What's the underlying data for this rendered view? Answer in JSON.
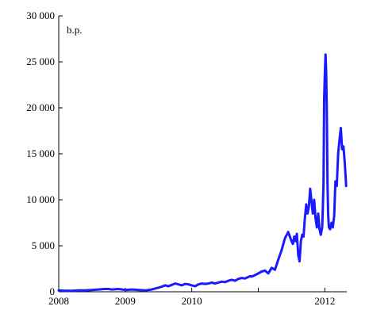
{
  "chart_data": {
    "type": "line",
    "title": "",
    "xlabel": "",
    "ylabel": "",
    "unit_label": "b.p.",
    "xlim": [
      2008.0,
      2012.33
    ],
    "ylim": [
      0,
      30000
    ],
    "x_ticks": [
      2008,
      2009,
      2010,
      2011,
      2012
    ],
    "x_tick_labels": [
      "2008",
      "2009",
      "2010",
      "",
      "2012"
    ],
    "y_ticks": [
      0,
      5000,
      10000,
      15000,
      20000,
      25000,
      30000
    ],
    "y_tick_labels": [
      "0",
      "5 000",
      "10 000",
      "15 000",
      "20 000",
      "25 000",
      "30 000"
    ],
    "grid": false,
    "legend": "none",
    "series": [
      {
        "color": "#1a1aff",
        "x": [
          2008.0,
          2008.1,
          2008.2,
          2008.3,
          2008.4,
          2008.5,
          2008.6,
          2008.7,
          2008.75,
          2008.8,
          2008.9,
          2009.0,
          2009.1,
          2009.2,
          2009.3,
          2009.35,
          2009.4,
          2009.45,
          2009.5,
          2009.55,
          2009.6,
          2009.65,
          2009.7,
          2009.75,
          2009.8,
          2009.85,
          2009.9,
          2009.95,
          2010.0,
          2010.05,
          2010.1,
          2010.15,
          2010.2,
          2010.25,
          2010.3,
          2010.35,
          2010.4,
          2010.45,
          2010.5,
          2010.55,
          2010.6,
          2010.65,
          2010.7,
          2010.75,
          2010.8,
          2010.85,
          2010.88,
          2010.9,
          2010.95,
          2011.0,
          2011.05,
          2011.1,
          2011.15,
          2011.2,
          2011.25,
          2011.3,
          2011.35,
          2011.4,
          2011.45,
          2011.5,
          2011.52,
          2011.54,
          2011.56,
          2011.58,
          2011.6,
          2011.62,
          2011.64,
          2011.66,
          2011.68,
          2011.7,
          2011.72,
          2011.74,
          2011.76,
          2011.78,
          2011.8,
          2011.82,
          2011.84,
          2011.86,
          2011.88,
          2011.9,
          2011.92,
          2011.94,
          2011.96,
          2011.97,
          2011.98,
          2011.99,
          2012.0,
          2012.01,
          2012.02,
          2012.03,
          2012.04,
          2012.05,
          2012.06,
          2012.08,
          2012.1,
          2012.12,
          2012.14,
          2012.16,
          2012.18,
          2012.2,
          2012.22,
          2012.24,
          2012.26,
          2012.28,
          2012.3,
          2012.32
        ],
        "values": [
          150,
          100,
          100,
          150,
          150,
          200,
          250,
          300,
          300,
          250,
          300,
          200,
          250,
          200,
          150,
          200,
          250,
          350,
          450,
          550,
          700,
          600,
          750,
          900,
          800,
          700,
          850,
          800,
          700,
          600,
          800,
          900,
          850,
          900,
          1000,
          900,
          1000,
          1100,
          1050,
          1200,
          1300,
          1200,
          1400,
          1500,
          1450,
          1600,
          1700,
          1650,
          1800,
          2000,
          2200,
          2300,
          2000,
          2600,
          2400,
          3500,
          4500,
          5800,
          6500,
          5500,
          5200,
          6000,
          5500,
          6300,
          4000,
          3300,
          5500,
          6200,
          6000,
          8000,
          9500,
          8500,
          9200,
          11200,
          9800,
          8500,
          10000,
          8000,
          7000,
          8500,
          6800,
          6200,
          7000,
          9000,
          12000,
          21000,
          23500,
          25800,
          24000,
          20000,
          12000,
          8500,
          7000,
          6800,
          7500,
          7000,
          8200,
          12000,
          11500,
          15000,
          16500,
          17800,
          15500,
          15800,
          14000,
          11500
        ]
      }
    ]
  }
}
